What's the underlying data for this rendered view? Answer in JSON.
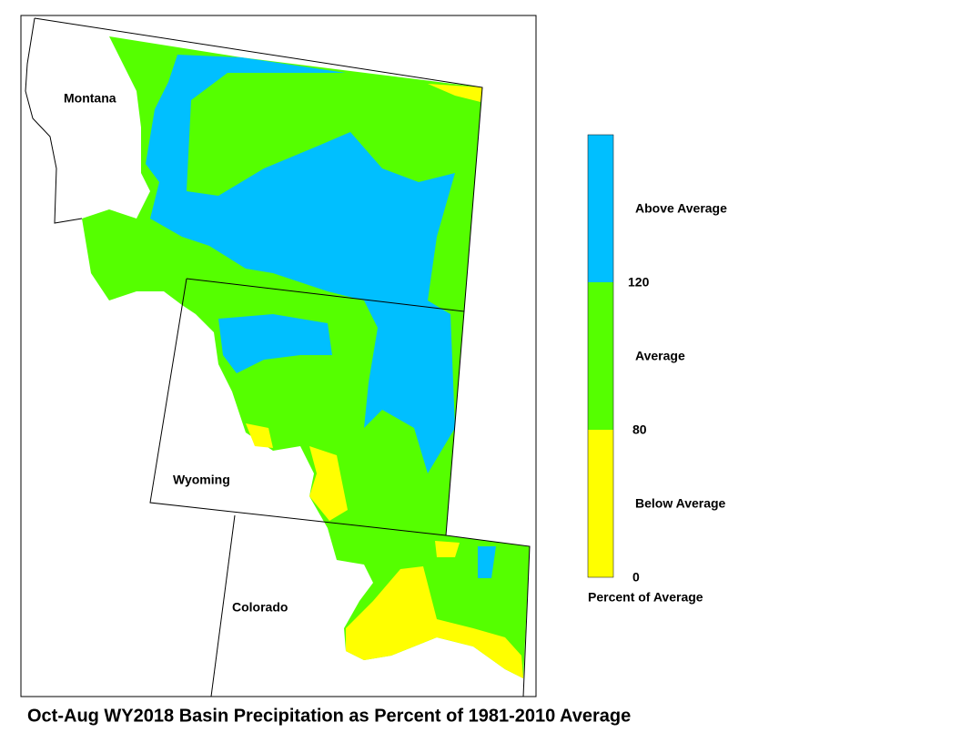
{
  "title": "Oct-Aug WY2018 Basin Precipitation as Percent of 1981-2010 Average",
  "states": [
    "Montana",
    "Wyoming",
    "Colorado"
  ],
  "legend": {
    "bins": [
      {
        "label": "Above Average",
        "color": "#00bfff"
      },
      {
        "label": "Average",
        "color": "#55ff00"
      },
      {
        "label": "Below Average",
        "color": "#ffff00"
      }
    ],
    "breaks": [
      120,
      80,
      0
    ],
    "caption": "Percent of Average"
  }
}
